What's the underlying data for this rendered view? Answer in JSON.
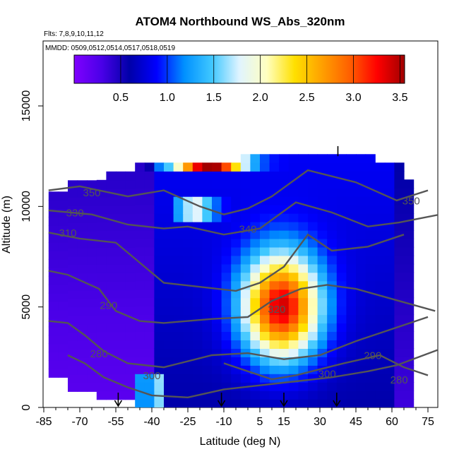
{
  "chart_data": {
    "type": "heatmap",
    "title": "ATOM4 Northbound WS_Abs_320nm",
    "flights_label": "Flts: 7,8,9,10,11,12",
    "dates_label": "MMDD: 0509,0512,0514,0517,0518,0519",
    "xlabel": "Latitude (deg N)",
    "ylabel": "Altitude (m)",
    "xlim": [
      -85,
      85
    ],
    "ylim": [
      0,
      17500
    ],
    "x_ticks": [
      -85,
      -70,
      -55,
      -40,
      -25,
      -10,
      5,
      15,
      30,
      45,
      60,
      75
    ],
    "y_ticks": [
      0,
      5000,
      10000,
      15000
    ],
    "colorbar": {
      "ticks": [
        0.5,
        1.0,
        1.5,
        2.0,
        2.5,
        3.0,
        3.5
      ],
      "range": [
        0.0,
        3.55
      ],
      "colors": [
        "#8000ff",
        "#4a00e8",
        "#0000a8",
        "#0000ff",
        "#0090ff",
        "#40c8ff",
        "#e0f4ff",
        "#ffffc0",
        "#ffe000",
        "#ffa000",
        "#ff6000",
        "#ff0000",
        "#a00000"
      ]
    },
    "contour_labels": [
      "350",
      "330",
      "310",
      "290",
      "280",
      "300",
      "340",
      "320",
      "290",
      "280",
      "300",
      "350"
    ],
    "profile_latitudes": [
      -53,
      -13,
      14,
      38
    ],
    "surface_marker_latitudes": [
      -54,
      -11,
      15,
      37
    ],
    "features": [
      {
        "name": "tropical-maximum",
        "lat": 12,
        "alt": 4800,
        "value": 3.2
      },
      {
        "name": "upper-band-maximum",
        "lat": -18,
        "alt": 11800,
        "value": 3.4
      }
    ]
  }
}
